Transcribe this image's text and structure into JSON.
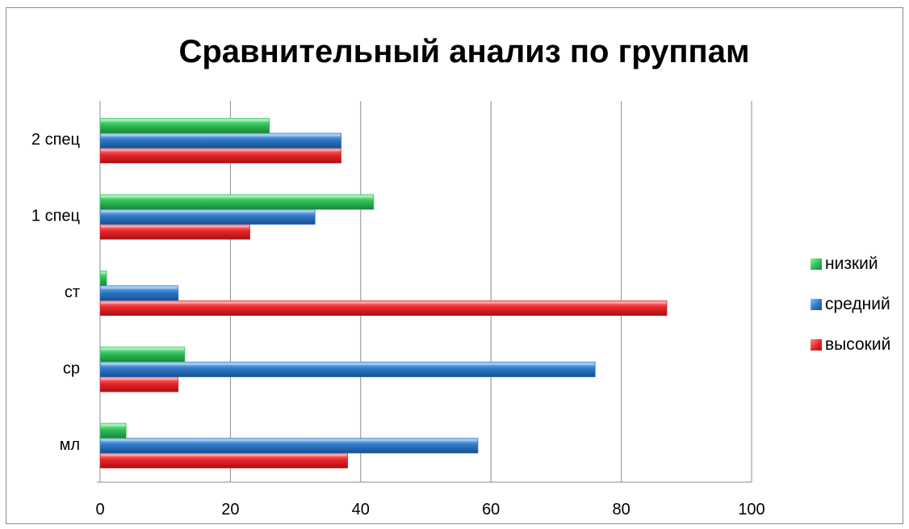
{
  "chart_data": {
    "type": "bar",
    "orientation": "horizontal",
    "title": "Сравнительный анализ по группам",
    "categories": [
      "мл",
      "ср",
      "ст",
      "1 спец",
      "2 спец"
    ],
    "series": [
      {
        "name": "высокий",
        "color": "#e8262a",
        "values": [
          38,
          12,
          87,
          23,
          37
        ]
      },
      {
        "name": "средний",
        "color": "#2e78c8",
        "values": [
          58,
          76,
          12,
          33,
          37
        ]
      },
      {
        "name": "низкий",
        "color": "#2fbf56",
        "values": [
          4,
          13,
          1,
          42,
          26
        ]
      }
    ],
    "xlim": [
      0,
      100
    ],
    "xticks": [
      "0",
      "20",
      "40",
      "60",
      "80",
      "100"
    ],
    "grid": true,
    "legend_position": "right"
  }
}
